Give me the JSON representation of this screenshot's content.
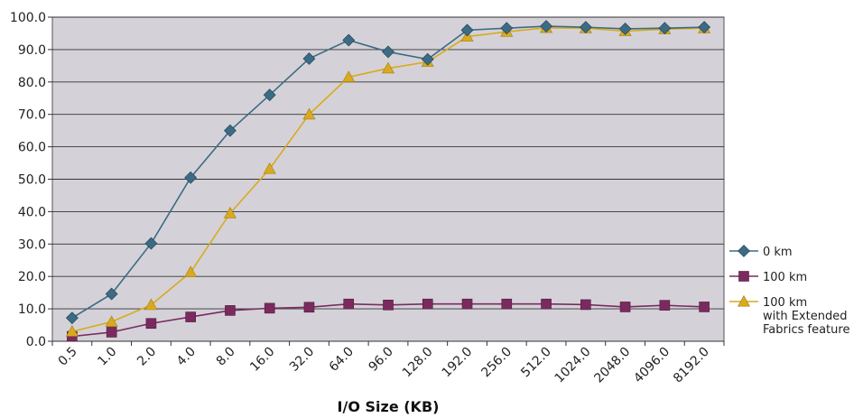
{
  "chart_data": {
    "type": "line",
    "title": "",
    "xlabel": "I/O Size (KB)",
    "ylabel": "",
    "ylim": [
      0,
      100
    ],
    "yticks": [
      "0.0",
      "10.0",
      "20.0",
      "30.0",
      "40.0",
      "50.0",
      "60.0",
      "70.0",
      "80.0",
      "90.0",
      "100.0"
    ],
    "categories": [
      "0.5",
      "1.0",
      "2.0",
      "4.0",
      "8.0",
      "16.0",
      "32.0",
      "64.0",
      "96.0",
      "128.0",
      "192.0",
      "256.0",
      "512.0",
      "1024.0",
      "2048.0",
      "4096.0",
      "8192.0"
    ],
    "grid": true,
    "legend_position": "right",
    "plot_background": "#d4d2d8",
    "series": [
      {
        "name": "0 km",
        "color": "#3c6b85",
        "marker": "diamond",
        "values": [
          7.2,
          14.6,
          30.2,
          50.5,
          65.0,
          76.0,
          87.2,
          92.9,
          89.3,
          87.0,
          96.0,
          96.6,
          97.2,
          96.9,
          96.4,
          96.6,
          96.9
        ]
      },
      {
        "name": "100 km",
        "color": "#7b2a60",
        "marker": "square",
        "values": [
          1.5,
          2.8,
          5.5,
          7.5,
          9.5,
          10.2,
          10.5,
          11.5,
          11.2,
          11.5,
          11.5,
          11.5,
          11.5,
          11.3,
          10.6,
          11.1,
          10.6
        ]
      },
      {
        "name": "100 km",
        "name_line2": "with Extended",
        "name_line3": "Fabrics feature",
        "color": "#d9aa1f",
        "marker": "triangle",
        "values": [
          3.0,
          6.0,
          11.2,
          21.3,
          39.5,
          53.2,
          70.0,
          81.5,
          84.2,
          86.2,
          94.0,
          95.5,
          96.7,
          96.6,
          95.7,
          96.3,
          96.6
        ]
      }
    ]
  }
}
